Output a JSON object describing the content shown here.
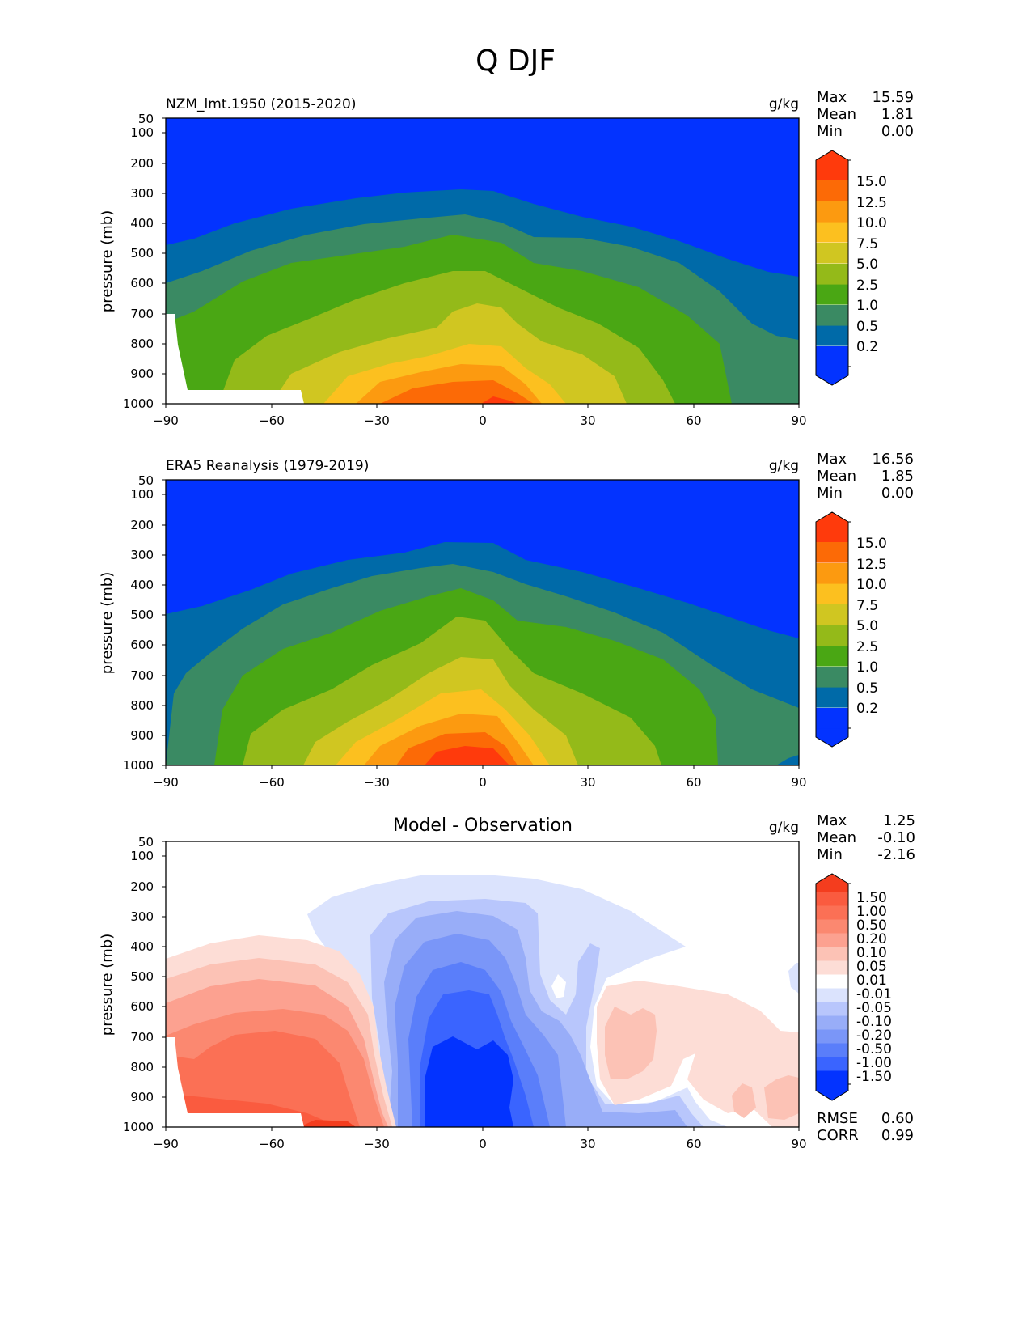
{
  "figure": {
    "title": "Q DJF"
  },
  "colors": {
    "q_levels": [
      "#0333ff",
      "#006aa8",
      "#3a8a63",
      "#4aa714",
      "#94ba19",
      "#d0c621",
      "#fcc01f",
      "#fc9a10",
      "#fc6a06",
      "#ff3a0c"
    ],
    "diff_levels": [
      "#0333ff",
      "#3a64ff",
      "#5a7efa",
      "#7a96f8",
      "#98adf8",
      "#b8c6fc",
      "#dbe3fd",
      "#ffffff",
      "#ffffff",
      "#fdddd6",
      "#fcc2b5",
      "#fca190",
      "#fb8870",
      "#fb7055",
      "#fa5b3f",
      "#f43d1e"
    ]
  },
  "chart_data": [
    {
      "type": "contour",
      "title": "NZM_lmt.1950 (2015-2020)",
      "units": "g/kg",
      "ylabel": "pressure (mb)",
      "xlabel": "",
      "xlim": [
        -90,
        90
      ],
      "ylim": [
        1000,
        50
      ],
      "xticks": [
        "−90",
        "−60",
        "−30",
        "0",
        "30",
        "60",
        "90"
      ],
      "yticks": [
        "50",
        "100",
        "200",
        "300",
        "400",
        "500",
        "600",
        "700",
        "800",
        "900",
        "1000"
      ],
      "stats": {
        "max_label": "Max",
        "max": "15.59",
        "mean_label": "Mean",
        "mean": "1.81",
        "min_label": "Min",
        "min": "0.00"
      },
      "colorbar_labels": [
        "15.0",
        "12.5",
        "10.0",
        "7.5",
        "5.0",
        "2.5",
        "1.0",
        "0.5",
        "0.2"
      ],
      "contour_levels": [
        0.2,
        0.5,
        1.0,
        2.5,
        5.0,
        7.5,
        10.0,
        12.5,
        15.0
      ]
    },
    {
      "type": "contour",
      "title": "ERA5 Reanalysis (1979-2019)",
      "units": "g/kg",
      "ylabel": "pressure (mb)",
      "xlabel": "",
      "xlim": [
        -90,
        90
      ],
      "ylim": [
        1000,
        50
      ],
      "xticks": [
        "−90",
        "−60",
        "−30",
        "0",
        "30",
        "60",
        "90"
      ],
      "yticks": [
        "50",
        "100",
        "200",
        "300",
        "400",
        "500",
        "600",
        "700",
        "800",
        "900",
        "1000"
      ],
      "stats": {
        "max_label": "Max",
        "max": "16.56",
        "mean_label": "Mean",
        "mean": "1.85",
        "min_label": "Min",
        "min": "0.00"
      },
      "colorbar_labels": [
        "15.0",
        "12.5",
        "10.0",
        "7.5",
        "5.0",
        "2.5",
        "1.0",
        "0.5",
        "0.2"
      ],
      "contour_levels": [
        0.2,
        0.5,
        1.0,
        2.5,
        5.0,
        7.5,
        10.0,
        12.5,
        15.0
      ]
    },
    {
      "type": "contour",
      "title": "Model - Observation",
      "units": "g/kg",
      "ylabel": "pressure (mb)",
      "xlabel": "",
      "xlim": [
        -90,
        90
      ],
      "ylim": [
        1000,
        50
      ],
      "xticks": [
        "−90",
        "−60",
        "−30",
        "0",
        "30",
        "60",
        "90"
      ],
      "yticks": [
        "50",
        "100",
        "200",
        "300",
        "400",
        "500",
        "600",
        "700",
        "800",
        "900",
        "1000"
      ],
      "stats": {
        "max_label": "Max",
        "max": "1.25",
        "mean_label": "Mean",
        "mean": "-0.10",
        "min_label": "Min",
        "min": "-2.16"
      },
      "extra_stats": {
        "rmse_label": "RMSE",
        "rmse": "0.60",
        "corr_label": "CORR",
        "corr": "0.99"
      },
      "colorbar_labels": [
        "1.50",
        "1.00",
        "0.50",
        "0.20",
        "0.10",
        "0.05",
        "0.01",
        "-0.01",
        "-0.05",
        "-0.10",
        "-0.20",
        "-0.50",
        "-1.00",
        "-1.50"
      ],
      "contour_levels": [
        -1.5,
        -1.0,
        -0.5,
        -0.2,
        -0.1,
        -0.05,
        -0.01,
        0.01,
        0.05,
        0.1,
        0.2,
        0.5,
        1.0,
        1.5
      ]
    }
  ]
}
